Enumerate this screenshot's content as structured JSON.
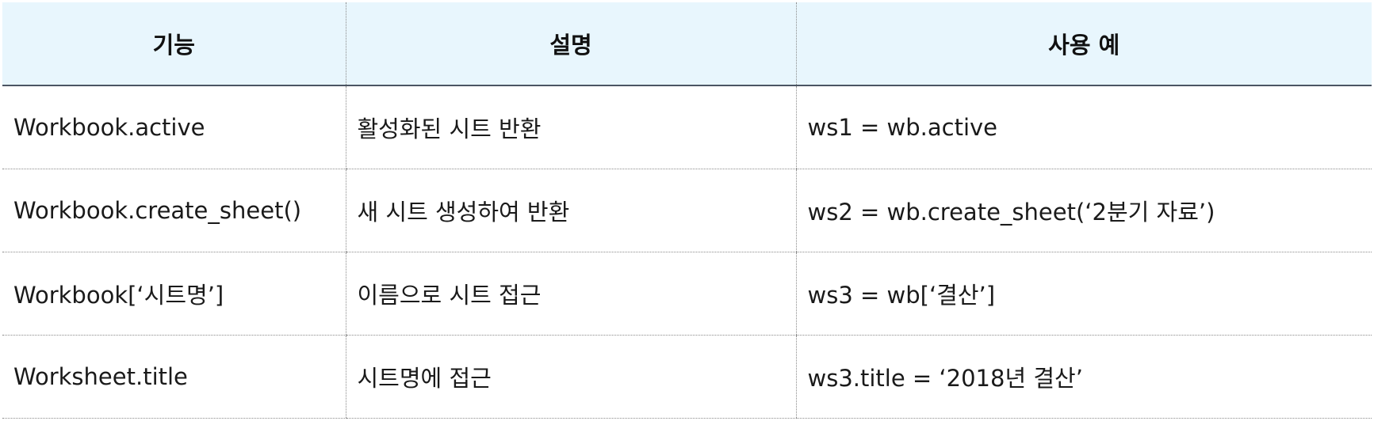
{
  "table": {
    "headers": [
      "기능",
      "설명",
      "사용 예"
    ],
    "rows": [
      [
        "Workbook.active",
        "활성화된 시트 반환",
        "ws1 = wb.active"
      ],
      [
        "Workbook.create_sheet()",
        "새 시트 생성하여 반환",
        "ws2 = wb.create_sheet(‘2분기 자료’)"
      ],
      [
        "Workbook[‘시트명’]",
        "이름으로 시트 접근",
        "ws3 = wb[‘결산’]"
      ],
      [
        "Worksheet.title",
        "시트명에 접근",
        "ws3.title = ‘2018년 결산’"
      ]
    ]
  },
  "colors": {
    "header_background": "#e8f6fd",
    "header_rule": "#4b5563",
    "dotted_rule": "#8a8a8a"
  }
}
